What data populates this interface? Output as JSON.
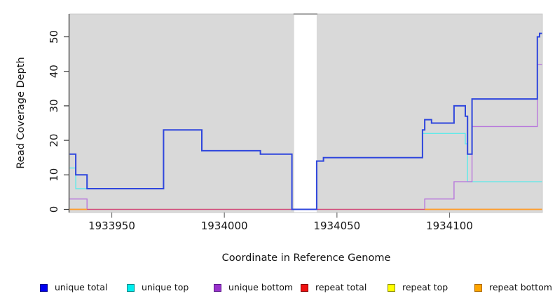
{
  "axes": {
    "y_title": "Read Coverage Depth",
    "x_title": "Coordinate in Reference Genome",
    "y_ticks": [
      0,
      10,
      20,
      30,
      40,
      50
    ],
    "x_ticks": [
      1933950,
      1934000,
      1934050,
      1934100
    ]
  },
  "legend": {
    "items": [
      {
        "label": "unique total",
        "fill": "#0000f0",
        "edge": "#000090"
      },
      {
        "label": "unique top",
        "fill": "#00eeee",
        "edge": "#008b8b"
      },
      {
        "label": "unique bottom",
        "fill": "#9932cc",
        "edge": "#5c1a8a"
      },
      {
        "label": "repeat total",
        "fill": "#ee1111",
        "edge": "#8b0000"
      },
      {
        "label": "repeat top",
        "fill": "#ffff00",
        "edge": "#8f8f00"
      },
      {
        "label": "repeat bottom",
        "fill": "#ffa500",
        "edge": "#b06a00"
      }
    ]
  },
  "chart_data": {
    "type": "line",
    "subtype": "step-coverage",
    "title": "",
    "xlabel": "Coordinate in Reference Genome",
    "ylabel": "Read Coverage Depth",
    "xlim": [
      1933931,
      1934141
    ],
    "ylim": [
      0,
      57
    ],
    "x_tick_values": [
      1933950,
      1934000,
      1934050,
      1934100
    ],
    "y_tick_values": [
      0,
      10,
      20,
      30,
      40,
      50
    ],
    "panel_background": "#d9d9d9",
    "gap_region": {
      "from": 1934031,
      "to": 1934041
    },
    "legend_position": "bottom",
    "grid": false,
    "series": [
      {
        "name": "unique total",
        "color": "#2f46dd",
        "width": 2,
        "steps": [
          [
            1933931,
            16
          ],
          [
            1933934,
            10
          ],
          [
            1933939,
            6
          ],
          [
            1933973,
            23
          ],
          [
            1933990,
            17
          ],
          [
            1934016,
            16
          ],
          [
            1934030,
            0
          ],
          [
            1934041,
            14
          ],
          [
            1934044,
            15
          ],
          [
            1934088,
            23
          ],
          [
            1934089,
            26
          ],
          [
            1934092,
            25
          ],
          [
            1934102,
            30
          ],
          [
            1934107,
            27
          ],
          [
            1934108,
            16
          ],
          [
            1934110,
            32
          ],
          [
            1934139,
            50
          ],
          [
            1934140,
            51
          ]
        ]
      },
      {
        "name": "unique top",
        "color": "#62e9e9",
        "width": 1.4,
        "steps": [
          [
            1933931,
            12
          ],
          [
            1933934,
            6
          ],
          [
            1933973,
            23
          ],
          [
            1933990,
            17
          ],
          [
            1934016,
            16
          ],
          [
            1934030,
            0
          ],
          [
            1934041,
            14
          ],
          [
            1934044,
            15
          ],
          [
            1934088,
            22
          ],
          [
            1934107,
            19
          ],
          [
            1934108,
            8
          ]
        ]
      },
      {
        "name": "unique bottom",
        "color": "#b877dc",
        "width": 1.4,
        "steps": [
          [
            1933931,
            3
          ],
          [
            1933939,
            0
          ],
          [
            1934089,
            3
          ],
          [
            1934102,
            8
          ],
          [
            1934110,
            24
          ],
          [
            1934139,
            42
          ]
        ]
      },
      {
        "name": "repeat total",
        "color": "#d2487c",
        "width": 1.3,
        "steps": [
          [
            1933931,
            0
          ]
        ]
      },
      {
        "name": "repeat top",
        "color": "#f5e626",
        "width": 1.3,
        "steps": [
          [
            1933931,
            0
          ]
        ]
      },
      {
        "name": "repeat bottom",
        "color": "#ff9d2a",
        "width": 1.7,
        "value": 0,
        "zero_segments": [
          [
            1933931,
            1933939
          ],
          [
            1934089,
            1934142
          ]
        ]
      }
    ],
    "draw_order": [
      "unique top",
      "unique bottom",
      "repeat top",
      "repeat total",
      "repeat bottom",
      "unique total"
    ]
  }
}
